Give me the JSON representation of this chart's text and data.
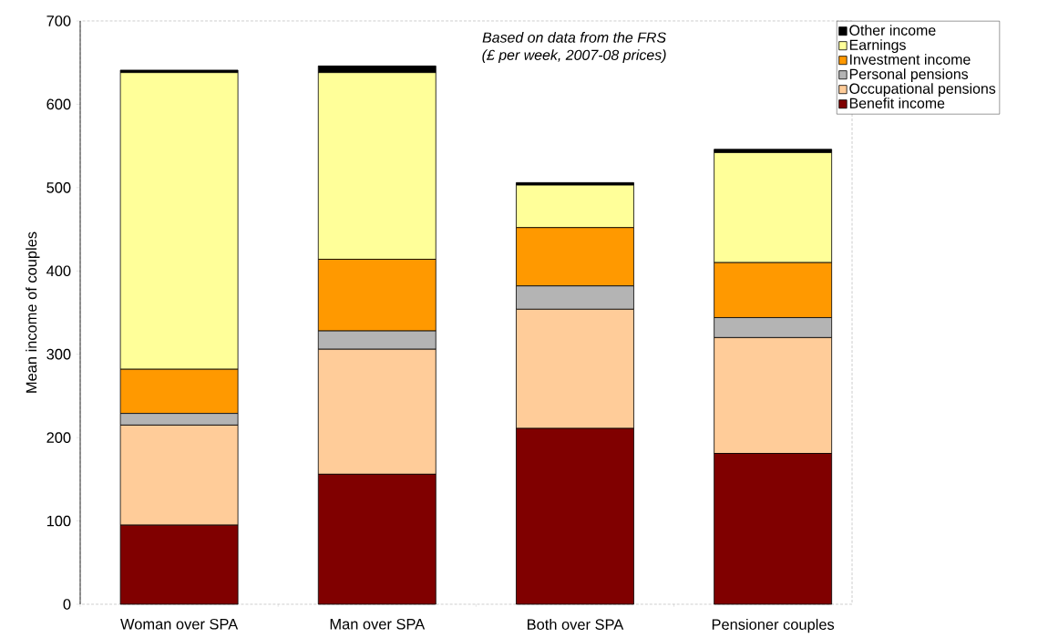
{
  "chart_data": {
    "type": "bar",
    "stacked": true,
    "ylabel": "Mean income of couples",
    "annotations": [
      "Based on data from the FRS",
      "(£ per week, 2007-08 prices)"
    ],
    "categories": [
      "Woman over SPA",
      "Man over SPA",
      "Both over SPA",
      "Pensioner couples"
    ],
    "series": [
      {
        "name": "Benefit income",
        "color": "#800000",
        "values": [
          95,
          156,
          211,
          181
        ]
      },
      {
        "name": "Occupational pensions",
        "color": "#ffcc99",
        "values": [
          120,
          150,
          143,
          139
        ]
      },
      {
        "name": "Personal pensions",
        "color": "#b4b4b4",
        "values": [
          14,
          22,
          28,
          24
        ]
      },
      {
        "name": "Investment income",
        "color": "#ff9900",
        "values": [
          53,
          86,
          70,
          66
        ]
      },
      {
        "name": "Earnings",
        "color": "#ffff99",
        "values": [
          356,
          224,
          51,
          132
        ]
      },
      {
        "name": "Other income",
        "color": "#000000",
        "values": [
          3,
          8,
          3,
          4
        ]
      }
    ],
    "ylim": [
      0,
      700
    ],
    "yticks": [
      0,
      100,
      200,
      300,
      400,
      500,
      600,
      700
    ],
    "legend": "top right"
  }
}
